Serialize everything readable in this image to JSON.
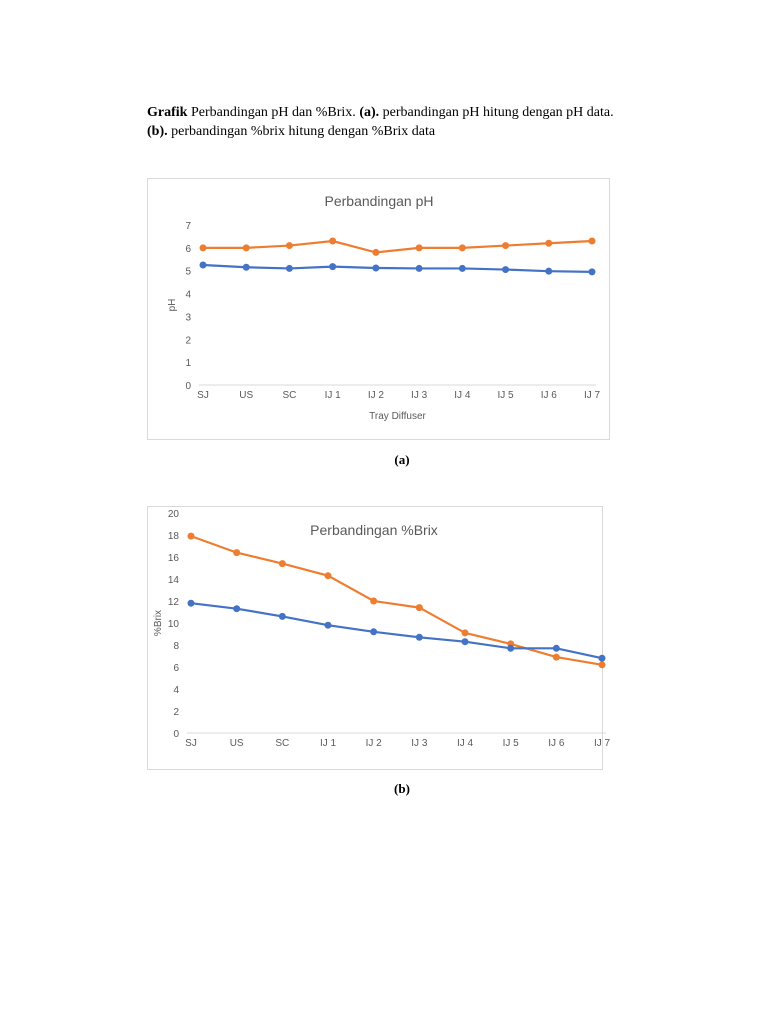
{
  "caption": {
    "bold_1": "Grafik",
    "text_1": " Perbandingan pH dan %Brix. ",
    "bold_2": "(a).",
    "text_2": " perbandingan pH hitung dengan pH data. ",
    "bold_3": "(b).",
    "text_3": " perbandingan %brix hitung dengan %Brix data"
  },
  "labels": {
    "a": "(a)",
    "b": "(b)"
  },
  "colors": {
    "orange": "#ED7D31",
    "blue": "#4472C4",
    "text": "#595959",
    "axis": "#d9d9d9"
  },
  "chart_data": [
    {
      "type": "line",
      "title": "Perbandingan pH",
      "xlabel": "Tray Diffuser",
      "ylabel": "pH",
      "ylim": [
        0,
        7
      ],
      "yticks": [
        "0",
        "1",
        "2",
        "3",
        "4",
        "5",
        "6",
        "7"
      ],
      "grid": false,
      "categories": [
        "SJ",
        "US",
        "SC",
        "IJ 1",
        "IJ 2",
        "IJ 3",
        "IJ 4",
        "IJ 5",
        "IJ 6",
        "IJ 7"
      ],
      "series": [
        {
          "color": "#ED7D31",
          "values": [
            6.0,
            6.0,
            6.1,
            6.3,
            5.8,
            6.0,
            6.0,
            6.1,
            6.2,
            6.3
          ]
        },
        {
          "color": "#4472C4",
          "values": [
            5.25,
            5.15,
            5.1,
            5.18,
            5.12,
            5.1,
            5.1,
            5.05,
            4.98,
            4.95
          ]
        }
      ]
    },
    {
      "type": "line",
      "title": "Perbandingan %Brix",
      "xlabel": "",
      "ylabel": "%Brix",
      "ylim": [
        0,
        20
      ],
      "yticks": [
        "0",
        "2",
        "4",
        "6",
        "8",
        "10",
        "12",
        "14",
        "16",
        "18",
        "20"
      ],
      "grid": false,
      "categories": [
        "SJ",
        "US",
        "SC",
        "IJ 1",
        "IJ 2",
        "IJ 3",
        "IJ 4",
        "IJ 5",
        "IJ 6",
        "IJ 7"
      ],
      "series": [
        {
          "color": "#ED7D31",
          "values": [
            17.9,
            16.4,
            15.4,
            14.3,
            12.0,
            11.4,
            9.1,
            8.1,
            6.9,
            6.2
          ]
        },
        {
          "color": "#4472C4",
          "values": [
            11.8,
            11.3,
            10.6,
            9.8,
            9.2,
            8.7,
            8.3,
            7.7,
            7.7,
            6.8
          ]
        }
      ]
    }
  ]
}
